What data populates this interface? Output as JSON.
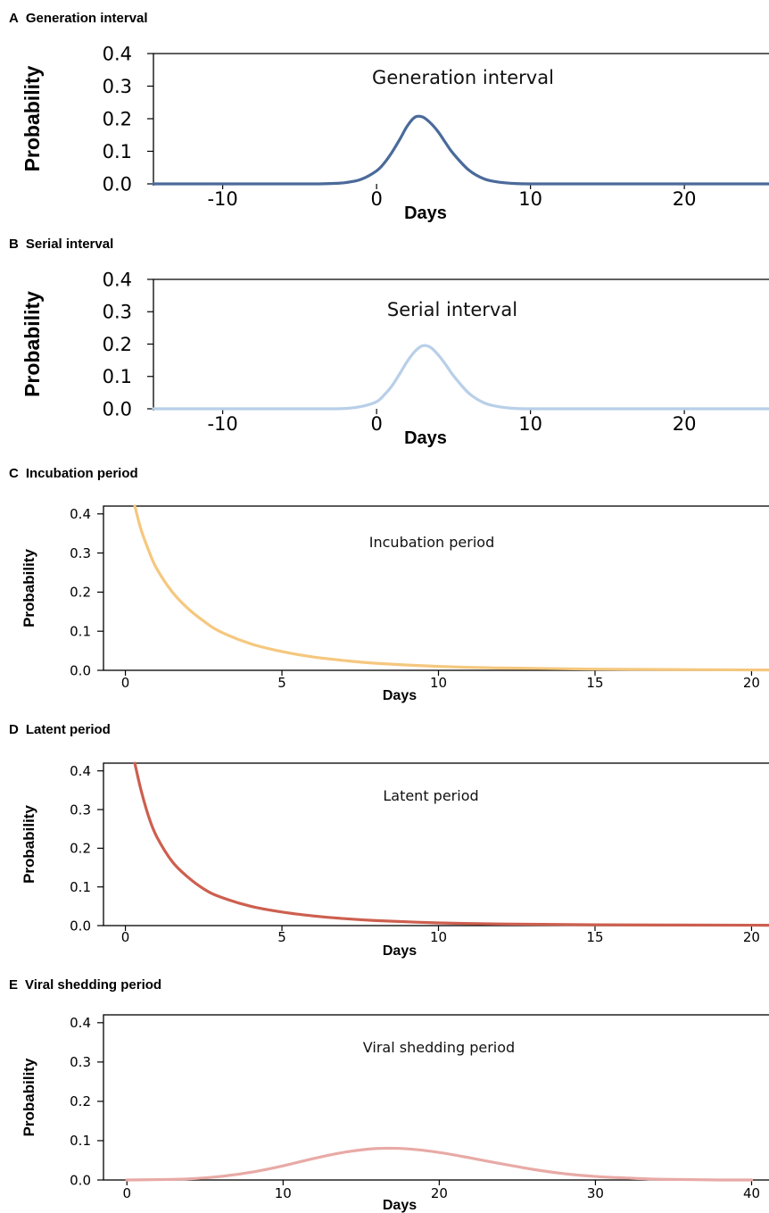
{
  "chart_data": [
    {
      "type": "line",
      "panel_label": "A",
      "panel_title": "Generation interval",
      "title": "Generation interval",
      "xlabel": "Days",
      "ylabel": "Probability",
      "xlim": [
        -14.5,
        25.5
      ],
      "ylim": [
        0,
        0.4
      ],
      "x_ticks": [
        "-10",
        "0",
        "10",
        "20"
      ],
      "y_ticks": [
        "0.0",
        "0.1",
        "0.2",
        "0.3",
        "0.4"
      ],
      "grid": false,
      "color": "#4a6a9a",
      "series": [
        {
          "x": [
            -14.5,
            -10,
            -6,
            -4,
            -3,
            -2,
            -1,
            0,
            0.5,
            1,
            1.5,
            2,
            2.5,
            3,
            3.5,
            4,
            4.5,
            5,
            6,
            7,
            8,
            9,
            10,
            12,
            15,
            20,
            25.5
          ],
          "y": [
            0,
            0,
            0,
            0,
            0.001,
            0.004,
            0.014,
            0.04,
            0.064,
            0.097,
            0.136,
            0.178,
            0.205,
            0.205,
            0.187,
            0.16,
            0.125,
            0.092,
            0.042,
            0.015,
            0.005,
            0.001,
            0,
            0,
            0,
            0,
            0
          ]
        }
      ]
    },
    {
      "type": "line",
      "panel_label": "B",
      "panel_title": "Serial interval",
      "title": "Serial interval",
      "xlabel": "Days",
      "ylabel": "Probability",
      "xlim": [
        -14.5,
        25.5
      ],
      "ylim": [
        0,
        0.4
      ],
      "x_ticks": [
        "-10",
        "0",
        "10",
        "20"
      ],
      "y_ticks": [
        "0.0",
        "0.1",
        "0.2",
        "0.3",
        "0.4"
      ],
      "grid": false,
      "color": "#b8cfe8",
      "series": [
        {
          "x": [
            -14.5,
            -10,
            -6,
            -4,
            -3,
            -2,
            -1,
            0,
            0.5,
            1,
            1.5,
            2,
            2.5,
            3,
            3.5,
            4,
            4.5,
            5,
            6,
            7,
            8,
            9,
            10,
            12,
            15,
            20,
            25.5
          ],
          "y": [
            0,
            0,
            0,
            0,
            0,
            0.001,
            0.007,
            0.022,
            0.043,
            0.071,
            0.108,
            0.147,
            0.178,
            0.195,
            0.19,
            0.167,
            0.136,
            0.102,
            0.048,
            0.018,
            0.006,
            0.001,
            0,
            0,
            0,
            0,
            0
          ]
        }
      ]
    },
    {
      "type": "line",
      "panel_label": "C",
      "panel_title": "Incubation period",
      "title": "Incubation period",
      "xlabel": "Days",
      "ylabel": "Probability",
      "xlim": [
        -0.7,
        20.5
      ],
      "ylim": [
        0,
        0.42
      ],
      "x_ticks": [
        "0",
        "5",
        "10",
        "15",
        "20"
      ],
      "y_ticks": [
        "0.0",
        "0.1",
        "0.2",
        "0.3",
        "0.4"
      ],
      "grid": false,
      "color": "#f5c77e",
      "series": [
        {
          "x": [
            0.3,
            0.5,
            0.75,
            1,
            1.5,
            2,
            2.5,
            3,
            4,
            5,
            6,
            7,
            8,
            10,
            12,
            15,
            20,
            20.5
          ],
          "y": [
            0.42,
            0.36,
            0.305,
            0.26,
            0.2,
            0.158,
            0.126,
            0.1,
            0.068,
            0.048,
            0.034,
            0.025,
            0.018,
            0.01,
            0.006,
            0.003,
            0.001,
            0.001
          ]
        }
      ]
    },
    {
      "type": "line",
      "panel_label": "D",
      "panel_title": "Latent period",
      "title": "Latent period",
      "xlabel": "Days",
      "ylabel": "Probability",
      "xlim": [
        -0.7,
        20.5
      ],
      "ylim": [
        0,
        0.42
      ],
      "x_ticks": [
        "0",
        "5",
        "10",
        "15",
        "20"
      ],
      "y_ticks": [
        "0.0",
        "0.1",
        "0.2",
        "0.3",
        "0.4"
      ],
      "grid": false,
      "color": "#cd5f4f",
      "series": [
        {
          "x": [
            0.3,
            0.5,
            0.75,
            1,
            1.5,
            2,
            2.5,
            3,
            4,
            5,
            6,
            7,
            8,
            10,
            12,
            15,
            20,
            20.5
          ],
          "y": [
            0.42,
            0.35,
            0.28,
            0.23,
            0.165,
            0.125,
            0.095,
            0.075,
            0.05,
            0.035,
            0.025,
            0.018,
            0.013,
            0.007,
            0.004,
            0.002,
            0.001,
            0.001
          ]
        }
      ]
    },
    {
      "type": "line",
      "panel_label": "E",
      "panel_title": "Viral shedding period",
      "title": "Viral shedding period",
      "xlabel": "Days",
      "ylabel": "Probability",
      "xlim": [
        -1.5,
        41
      ],
      "ylim": [
        0,
        0.42
      ],
      "x_ticks": [
        "0",
        "10",
        "20",
        "30",
        "40"
      ],
      "y_ticks": [
        "0.0",
        "0.1",
        "0.2",
        "0.3",
        "0.4"
      ],
      "grid": false,
      "color": "#e8aaa6",
      "series": [
        {
          "x": [
            0,
            2,
            4,
            6,
            8,
            10,
            12,
            14,
            16,
            18,
            20,
            22,
            24,
            26,
            28,
            30,
            32,
            34,
            36,
            38,
            40
          ],
          "y": [
            0,
            0.001,
            0.003,
            0.009,
            0.02,
            0.036,
            0.055,
            0.071,
            0.08,
            0.079,
            0.07,
            0.056,
            0.041,
            0.027,
            0.016,
            0.009,
            0.005,
            0.002,
            0.001,
            0,
            0
          ]
        }
      ]
    }
  ]
}
